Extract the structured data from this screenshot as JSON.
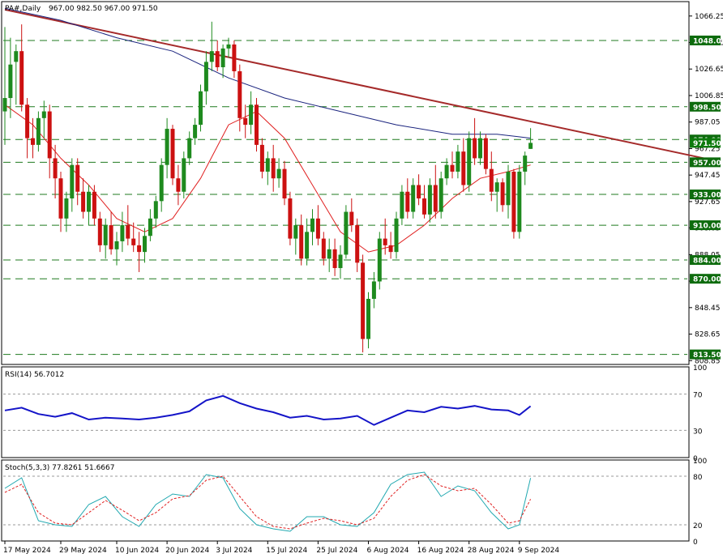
{
  "header": {
    "symbol_label": "PA#,Daily",
    "ohlc_label": "967.00 982.50 967.00 971.50"
  },
  "rsi_panel": {
    "label": "RSI(14) 56.7012",
    "scale_labels": [
      "100",
      "70",
      "30",
      "0"
    ]
  },
  "stoch_panel": {
    "label": "Stoch(5,3,3) 77.8261 51.6667",
    "scale_labels": [
      "100",
      "80",
      "20",
      "0"
    ]
  },
  "colors": {
    "bull": "#1e8a1e",
    "bear": "#cc1111",
    "ma_fast": "#e02020",
    "ma_slow": "#1a237e",
    "trendline": "#a52a2a",
    "level_line": "#1f7a1f",
    "rsi": "#1414c8",
    "stoch_main": "#20a8b0",
    "stoch_signal": "#e02020",
    "badge": "#0d7a0d",
    "level_badge": "#0d6b0d",
    "grid": "#cccccc"
  },
  "chart_data": [
    {
      "type": "candlestick",
      "panel": "price",
      "title": "PA#,Daily",
      "ylim": [
        806,
        1077
      ],
      "y_ticks": [
        "1066.25",
        "1046.45",
        "1026.65",
        "1006.85",
        "987.05",
        "967.25",
        "947.45",
        "927.65",
        "908.05",
        "888.05",
        "868.25",
        "848.45",
        "828.65",
        "808.85"
      ],
      "x_labels": [
        "17 May 2024",
        "29 May 2024",
        "10 Jun 2024",
        "20 Jun 2024",
        "3 Jul 2024",
        "15 Jul 2024",
        "25 Jul 2024",
        "6 Aug 2024",
        "16 Aug 2024",
        "28 Aug 2024",
        "9 Sep 2024"
      ],
      "x_label_index": [
        0,
        10,
        20,
        29,
        38,
        47,
        56,
        65,
        74,
        83,
        92
      ],
      "horizontal_levels": [
        1048.0,
        998.5,
        974.0,
        957.0,
        933.0,
        910.0,
        884.0,
        870.0,
        813.5
      ],
      "horizontal_level_labels": [
        "1048.00",
        "998.50",
        "974.00",
        "957.00",
        "933.00",
        "910.00",
        "884.00",
        "870.00",
        "813.50"
      ],
      "current_price": 971.5,
      "current_price_label": "971.50",
      "trendline": {
        "start": {
          "index": 0,
          "value": 1071
        },
        "end": {
          "index": 125,
          "value": 960
        }
      },
      "candles": [
        [
          0,
          995,
          1058,
          970,
          1005
        ],
        [
          1,
          1005,
          1050,
          990,
          1030
        ],
        [
          2,
          1032,
          1045,
          1000,
          1040
        ],
        [
          3,
          1040,
          1060,
          995,
          1000
        ],
        [
          4,
          1000,
          1005,
          960,
          975
        ],
        [
          5,
          975,
          990,
          960,
          970
        ],
        [
          6,
          970,
          995,
          965,
          990
        ],
        [
          7,
          990,
          1003,
          975,
          995
        ],
        [
          8,
          995,
          1000,
          945,
          960
        ],
        [
          9,
          960,
          970,
          930,
          945
        ],
        [
          10,
          945,
          950,
          905,
          915
        ],
        [
          11,
          915,
          935,
          905,
          930
        ],
        [
          12,
          930,
          960,
          920,
          955
        ],
        [
          13,
          955,
          960,
          925,
          935
        ],
        [
          14,
          935,
          945,
          915,
          920
        ],
        [
          15,
          920,
          940,
          910,
          935
        ],
        [
          16,
          935,
          940,
          910,
          915
        ],
        [
          17,
          915,
          920,
          890,
          895
        ],
        [
          18,
          895,
          915,
          885,
          910
        ],
        [
          19,
          910,
          920,
          888,
          892
        ],
        [
          20,
          892,
          905,
          880,
          898
        ],
        [
          21,
          898,
          920,
          890,
          910
        ],
        [
          22,
          910,
          925,
          895,
          900
        ],
        [
          23,
          900,
          912,
          890,
          895
        ],
        [
          24,
          895,
          905,
          875,
          890
        ],
        [
          25,
          890,
          908,
          882,
          902
        ],
        [
          26,
          902,
          922,
          898,
          915
        ],
        [
          27,
          915,
          932,
          908,
          928
        ],
        [
          28,
          928,
          960,
          920,
          955
        ],
        [
          29,
          955,
          990,
          945,
          982
        ],
        [
          30,
          982,
          985,
          940,
          945
        ],
        [
          31,
          945,
          955,
          925,
          935
        ],
        [
          32,
          935,
          965,
          930,
          960
        ],
        [
          33,
          960,
          980,
          955,
          975
        ],
        [
          34,
          975,
          990,
          970,
          985
        ],
        [
          35,
          985,
          1015,
          980,
          1010
        ],
        [
          36,
          1010,
          1040,
          1000,
          1032
        ],
        [
          37,
          1032,
          1062,
          1025,
          1040
        ],
        [
          38,
          1040,
          1048,
          1025,
          1028
        ],
        [
          39,
          1028,
          1045,
          1020,
          1042
        ],
        [
          40,
          1042,
          1050,
          1035,
          1045
        ],
        [
          41,
          1045,
          1048,
          1020,
          1025
        ],
        [
          42,
          1025,
          1030,
          980,
          990
        ],
        [
          43,
          990,
          1000,
          975,
          985
        ],
        [
          44,
          985,
          1010,
          978,
          1000
        ],
        [
          45,
          1000,
          1005,
          965,
          970
        ],
        [
          46,
          970,
          975,
          945,
          950
        ],
        [
          47,
          950,
          965,
          940,
          960
        ],
        [
          48,
          960,
          970,
          935,
          945
        ],
        [
          49,
          945,
          960,
          938,
          952
        ],
        [
          50,
          952,
          958,
          925,
          930
        ],
        [
          51,
          930,
          935,
          895,
          900
        ],
        [
          52,
          900,
          915,
          888,
          910
        ],
        [
          53,
          910,
          918,
          880,
          885
        ],
        [
          54,
          885,
          915,
          880,
          905
        ],
        [
          55,
          905,
          922,
          895,
          915
        ],
        [
          56,
          915,
          925,
          895,
          900
        ],
        [
          57,
          900,
          905,
          880,
          885
        ],
        [
          58,
          885,
          900,
          875,
          892
        ],
        [
          59,
          892,
          900,
          872,
          878
        ],
        [
          60,
          878,
          895,
          870,
          888
        ],
        [
          61,
          888,
          925,
          885,
          920
        ],
        [
          62,
          920,
          930,
          905,
          910
        ],
        [
          63,
          910,
          915,
          875,
          882
        ],
        [
          64,
          882,
          888,
          815,
          825
        ],
        [
          65,
          825,
          860,
          818,
          855
        ],
        [
          66,
          855,
          875,
          848,
          868
        ],
        [
          67,
          868,
          905,
          862,
          900
        ],
        [
          68,
          900,
          915,
          888,
          895
        ],
        [
          69,
          895,
          905,
          885,
          890
        ],
        [
          70,
          890,
          920,
          885,
          915
        ],
        [
          71,
          915,
          940,
          910,
          935
        ],
        [
          72,
          935,
          945,
          915,
          920
        ],
        [
          73,
          920,
          945,
          915,
          940
        ],
        [
          74,
          940,
          948,
          925,
          930
        ],
        [
          75,
          930,
          940,
          915,
          918
        ],
        [
          76,
          918,
          945,
          912,
          940
        ],
        [
          77,
          940,
          955,
          915,
          920
        ],
        [
          78,
          920,
          950,
          915,
          945
        ],
        [
          79,
          945,
          960,
          940,
          955
        ],
        [
          80,
          955,
          965,
          945,
          950
        ],
        [
          81,
          950,
          970,
          945,
          965
        ],
        [
          82,
          965,
          975,
          935,
          940
        ],
        [
          83,
          940,
          980,
          935,
          975
        ],
        [
          84,
          975,
          990,
          955,
          960
        ],
        [
          85,
          960,
          980,
          955,
          975
        ],
        [
          86,
          975,
          978,
          948,
          952
        ],
        [
          87,
          952,
          965,
          928,
          935
        ],
        [
          88,
          935,
          945,
          920,
          942
        ],
        [
          89,
          942,
          945,
          920,
          925
        ],
        [
          90,
          925,
          955,
          915,
          950
        ],
        [
          91,
          950,
          952,
          900,
          905
        ],
        [
          92,
          905,
          955,
          900,
          950
        ],
        [
          93,
          950,
          965,
          940,
          962
        ],
        [
          94,
          967,
          982.5,
          967,
          971.5
        ]
      ],
      "ma_fast": [
        [
          0,
          1000
        ],
        [
          5,
          985
        ],
        [
          10,
          960
        ],
        [
          15,
          940
        ],
        [
          20,
          915
        ],
        [
          25,
          905
        ],
        [
          30,
          915
        ],
        [
          35,
          945
        ],
        [
          40,
          985
        ],
        [
          45,
          995
        ],
        [
          50,
          975
        ],
        [
          55,
          940
        ],
        [
          60,
          905
        ],
        [
          65,
          890
        ],
        [
          70,
          895
        ],
        [
          75,
          910
        ],
        [
          80,
          930
        ],
        [
          85,
          945
        ],
        [
          90,
          950
        ],
        [
          94,
          955
        ]
      ],
      "ma_slow": [
        [
          0,
          1072
        ],
        [
          10,
          1063
        ],
        [
          20,
          1050
        ],
        [
          30,
          1040
        ],
        [
          40,
          1020
        ],
        [
          50,
          1005
        ],
        [
          60,
          995
        ],
        [
          70,
          985
        ],
        [
          80,
          978
        ],
        [
          88,
          978
        ],
        [
          94,
          975
        ]
      ]
    },
    {
      "type": "line",
      "panel": "rsi",
      "title": "RSI(14) 56.7012",
      "ylim": [
        0,
        100
      ],
      "reference_levels": [
        70,
        30
      ],
      "series": [
        {
          "values": [
            [
              0,
              52
            ],
            [
              3,
              55
            ],
            [
              6,
              48
            ],
            [
              9,
              45
            ],
            [
              12,
              49
            ],
            [
              15,
              42
            ],
            [
              18,
              44
            ],
            [
              21,
              43
            ],
            [
              24,
              42
            ],
            [
              27,
              44
            ],
            [
              30,
              47
            ],
            [
              33,
              51
            ],
            [
              36,
              63
            ],
            [
              39,
              68
            ],
            [
              42,
              60
            ],
            [
              45,
              54
            ],
            [
              48,
              50
            ],
            [
              51,
              44
            ],
            [
              54,
              46
            ],
            [
              57,
              42
            ],
            [
              60,
              43
            ],
            [
              63,
              46
            ],
            [
              66,
              36
            ],
            [
              69,
              44
            ],
            [
              72,
              52
            ],
            [
              75,
              50
            ],
            [
              78,
              56
            ],
            [
              81,
              54
            ],
            [
              84,
              57
            ],
            [
              87,
              53
            ],
            [
              90,
              52
            ],
            [
              92,
              47
            ],
            [
              94,
              56.7
            ]
          ]
        }
      ]
    },
    {
      "type": "line",
      "panel": "stoch",
      "title": "Stoch(5,3,3) 77.8261 51.6667",
      "ylim": [
        0,
        100
      ],
      "reference_levels": [
        80,
        20
      ],
      "series": [
        {
          "values": [
            [
              0,
              65
            ],
            [
              3,
              78
            ],
            [
              6,
              25
            ],
            [
              9,
              20
            ],
            [
              12,
              18
            ],
            [
              15,
              45
            ],
            [
              18,
              55
            ],
            [
              21,
              30
            ],
            [
              24,
              18
            ],
            [
              27,
              45
            ],
            [
              30,
              58
            ],
            [
              33,
              55
            ],
            [
              36,
              82
            ],
            [
              39,
              78
            ],
            [
              42,
              40
            ],
            [
              45,
              20
            ],
            [
              48,
              15
            ],
            [
              51,
              12
            ],
            [
              54,
              30
            ],
            [
              57,
              30
            ],
            [
              60,
              20
            ],
            [
              63,
              18
            ],
            [
              66,
              35
            ],
            [
              69,
              70
            ],
            [
              72,
              82
            ],
            [
              75,
              85
            ],
            [
              78,
              55
            ],
            [
              81,
              68
            ],
            [
              84,
              62
            ],
            [
              87,
              35
            ],
            [
              90,
              15
            ],
            [
              92,
              20
            ],
            [
              94,
              77.8
            ]
          ]
        },
        {
          "values": [
            [
              0,
              60
            ],
            [
              3,
              70
            ],
            [
              6,
              35
            ],
            [
              9,
              22
            ],
            [
              12,
              20
            ],
            [
              15,
              35
            ],
            [
              18,
              50
            ],
            [
              21,
              38
            ],
            [
              24,
              25
            ],
            [
              27,
              35
            ],
            [
              30,
              52
            ],
            [
              33,
              56
            ],
            [
              36,
              75
            ],
            [
              39,
              80
            ],
            [
              42,
              55
            ],
            [
              45,
              30
            ],
            [
              48,
              18
            ],
            [
              51,
              15
            ],
            [
              54,
              22
            ],
            [
              57,
              28
            ],
            [
              60,
              25
            ],
            [
              63,
              20
            ],
            [
              66,
              28
            ],
            [
              69,
              55
            ],
            [
              72,
              75
            ],
            [
              75,
              82
            ],
            [
              78,
              68
            ],
            [
              81,
              62
            ],
            [
              84,
              65
            ],
            [
              87,
              45
            ],
            [
              90,
              22
            ],
            [
              92,
              25
            ],
            [
              94,
              51.7
            ]
          ]
        }
      ]
    }
  ]
}
